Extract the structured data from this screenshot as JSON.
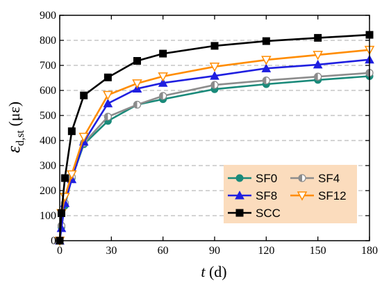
{
  "chart_data": {
    "type": "line",
    "x": [
      0,
      1,
      3,
      7,
      14,
      28,
      45,
      60,
      90,
      120,
      150,
      180
    ],
    "xlim": [
      0,
      180
    ],
    "ylim": [
      0,
      900
    ],
    "xticks": [
      "0",
      "30",
      "60",
      "90",
      "120",
      "150",
      "180"
    ],
    "yticks": [
      "0",
      "100",
      "200",
      "300",
      "400",
      "500",
      "600",
      "700",
      "800",
      "900"
    ],
    "xlabel_italic": "t",
    "xlabel_rest": " (d)",
    "ylabel_symbol": "ε",
    "ylabel_subscript": "d,st",
    "ylabel_unit": " (με)",
    "grid": "horizontal dashed",
    "legend_position": "bottom-right",
    "legend_bg": "#fbdcbd",
    "series": [
      {
        "name": "SF0",
        "color": "#1a8a7a",
        "marker": "circle",
        "values": [
          0,
          55,
          140,
          250,
          385,
          478,
          543,
          565,
          605,
          625,
          642,
          657
        ]
      },
      {
        "name": "SF4",
        "color": "#8c8c8c",
        "marker": "half-circle",
        "values": [
          0,
          60,
          150,
          255,
          390,
          495,
          543,
          578,
          622,
          640,
          655,
          670
        ]
      },
      {
        "name": "SF8",
        "color": "#1f1fe0",
        "marker": "triangle-up",
        "values": [
          0,
          50,
          150,
          245,
          395,
          548,
          607,
          630,
          658,
          688,
          703,
          723
        ]
      },
      {
        "name": "SF12",
        "color": "#ff8c00",
        "marker": "triangle-down",
        "values": [
          0,
          110,
          175,
          265,
          415,
          582,
          628,
          656,
          695,
          722,
          742,
          762
        ]
      },
      {
        "name": "SCC",
        "color": "#000000",
        "marker": "square",
        "values": [
          0,
          110,
          250,
          437,
          580,
          652,
          718,
          747,
          778,
          797,
          810,
          822
        ]
      }
    ]
  }
}
